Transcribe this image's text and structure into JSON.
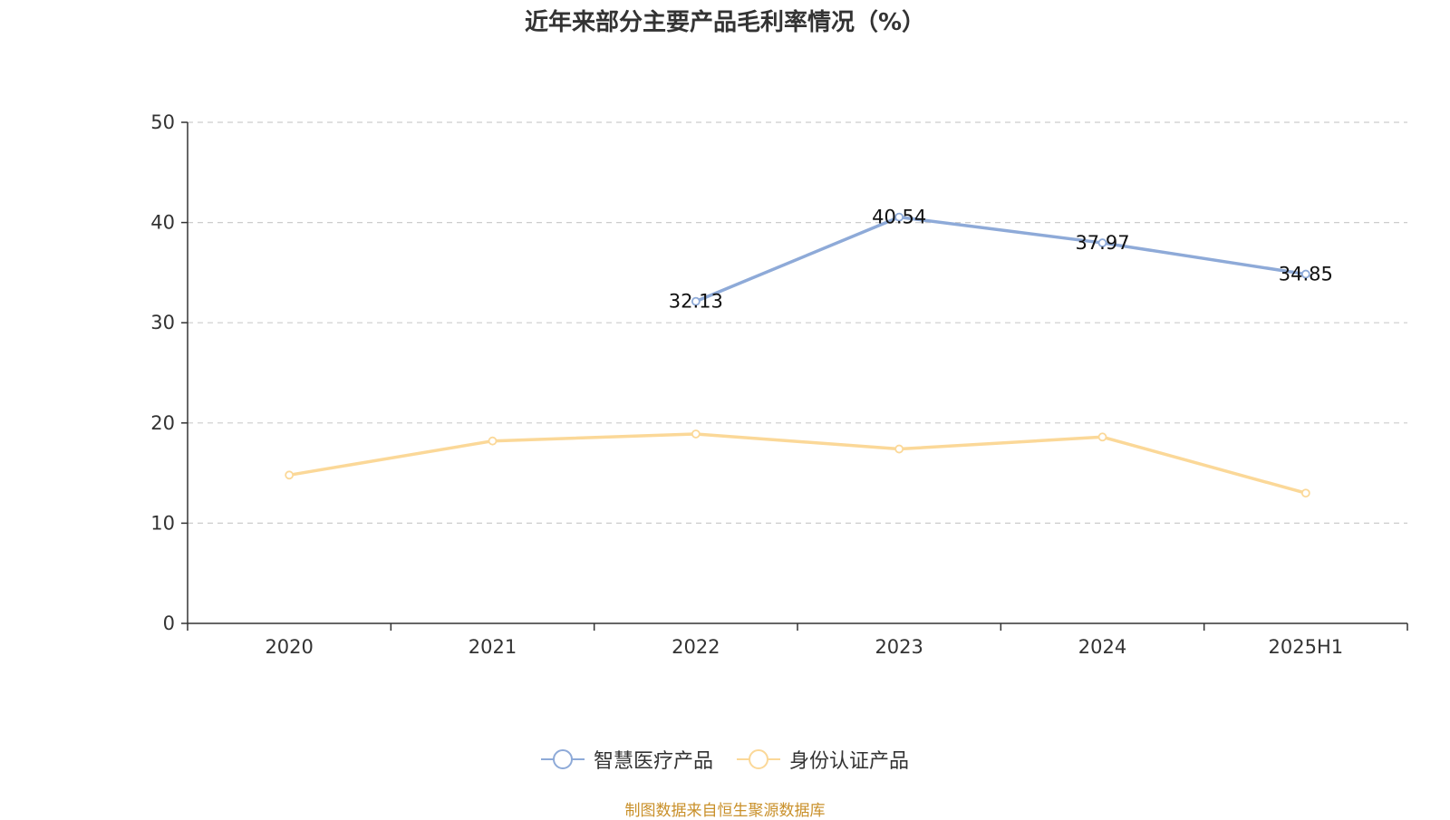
{
  "title": "近年来部分主要产品毛利率情况（%）",
  "source": "制图数据来自恒生聚源数据库",
  "colors": {
    "series1": "#8eaad8",
    "series2": "#fbd898",
    "grid": "#cccccc",
    "axis": "#333333"
  },
  "legend": {
    "items": [
      "智慧医疗产品",
      "身份认证产品"
    ]
  },
  "chart_data": {
    "type": "line",
    "categories": [
      "2020",
      "2021",
      "2022",
      "2023",
      "2024",
      "2025H1"
    ],
    "ylim": [
      0,
      50
    ],
    "yticks": [
      "0",
      "10",
      "20",
      "30",
      "40",
      "50"
    ],
    "grid": true,
    "legend_position": "bottom",
    "series": [
      {
        "name": "智慧医疗产品",
        "values": [
          null,
          null,
          32.13,
          40.54,
          37.97,
          34.85
        ],
        "labels": [
          "",
          "",
          "32.13",
          "40.54",
          "37.97",
          "34.85"
        ]
      },
      {
        "name": "身份认证产品",
        "values": [
          14.8,
          18.2,
          18.9,
          17.4,
          18.6,
          13.0
        ],
        "labels": [
          "",
          "",
          "",
          "",
          "",
          ""
        ]
      }
    ]
  }
}
